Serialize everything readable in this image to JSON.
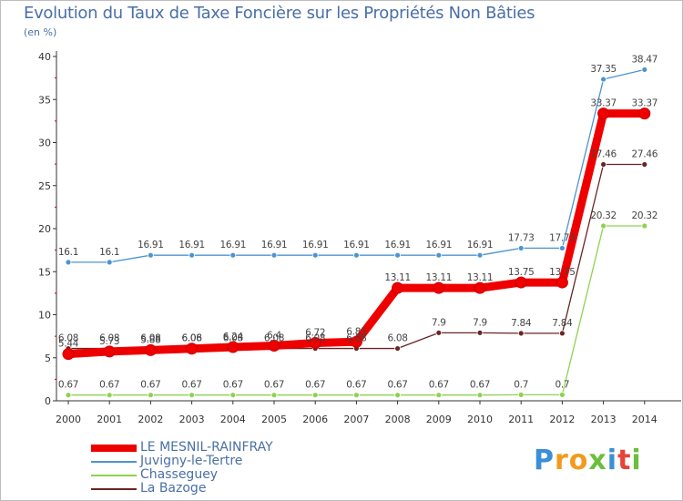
{
  "chart_data": {
    "type": "line",
    "title": "Evolution du Taux de Taxe Foncière sur les Propriétés Non Bâties",
    "ylabel": "(en %)",
    "xlabel": "",
    "x": [
      "2000",
      "2001",
      "2002",
      "2003",
      "2004",
      "2005",
      "2006",
      "2007",
      "2008",
      "2009",
      "2010",
      "2011",
      "2012",
      "2013",
      "2014"
    ],
    "ylim": [
      0,
      40
    ],
    "yticks": [
      "0",
      "5",
      "10",
      "15",
      "20",
      "25",
      "30",
      "35",
      "40"
    ],
    "grid": false,
    "legend_position": "bottom-left",
    "series": [
      {
        "name": "LE MESNIL-RAINFRAY",
        "color": "#ee0000",
        "values": [
          5.44,
          5.73,
          5.88,
          6.06,
          6.24,
          6.4,
          6.72,
          6.85,
          13.11,
          13.11,
          13.11,
          13.75,
          13.75,
          33.37,
          33.37
        ],
        "labels": [
          "5.44",
          "5.73",
          "5.88",
          "6.06",
          "6.24",
          "6.4",
          "6.72",
          "6.85",
          "13.11",
          "13.11",
          "13.11",
          "13.75",
          "13.75",
          "33.37",
          "33.37"
        ]
      },
      {
        "name": "Juvigny-le-Tertre",
        "color": "#4d94d0",
        "values": [
          16.1,
          16.1,
          16.91,
          16.91,
          16.91,
          16.91,
          16.91,
          16.91,
          16.91,
          16.91,
          16.91,
          17.73,
          17.73,
          37.35,
          38.47
        ],
        "labels": [
          "16.1",
          "16.1",
          "16.91",
          "16.91",
          "16.91",
          "16.91",
          "16.91",
          "16.91",
          "16.91",
          "16.91",
          "16.91",
          "17.73",
          "17.73",
          "37.35",
          "38.47"
        ]
      },
      {
        "name": "Chasseguey",
        "color": "#8ed250",
        "values": [
          0.67,
          0.67,
          0.67,
          0.67,
          0.67,
          0.67,
          0.67,
          0.67,
          0.67,
          0.67,
          0.67,
          0.7,
          0.7,
          20.32,
          20.32
        ],
        "labels": [
          "0.67",
          "0.67",
          "0.67",
          "0.67",
          "0.67",
          "0.67",
          "0.67",
          "0.67",
          "0.67",
          "0.67",
          "0.67",
          "0.7",
          "0.7",
          "20.32",
          "20.32"
        ]
      },
      {
        "name": "La Bazoge",
        "color": "#6b2424",
        "values": [
          6.08,
          6.08,
          6.08,
          6.08,
          6.08,
          6.08,
          6.08,
          6.08,
          6.08,
          7.9,
          7.9,
          7.84,
          7.84,
          27.46,
          27.46
        ],
        "labels": [
          "6.08",
          "6.08",
          "6.08",
          "6.08",
          "6.08",
          "6.08",
          "6.08",
          "6.08",
          "6.08",
          "7.9",
          "7.9",
          "7.84",
          "7.84",
          "27.46",
          "27.46"
        ]
      }
    ]
  },
  "branding": {
    "logo_letters": [
      "P",
      "r",
      "o",
      "x",
      "i",
      "t",
      "i"
    ],
    "logo_colors": [
      "#3a8fd6",
      "#f29a1d",
      "#f29a1d",
      "#6abf3c",
      "#3a8fd6",
      "#e5443a",
      "#6abf3c"
    ]
  }
}
